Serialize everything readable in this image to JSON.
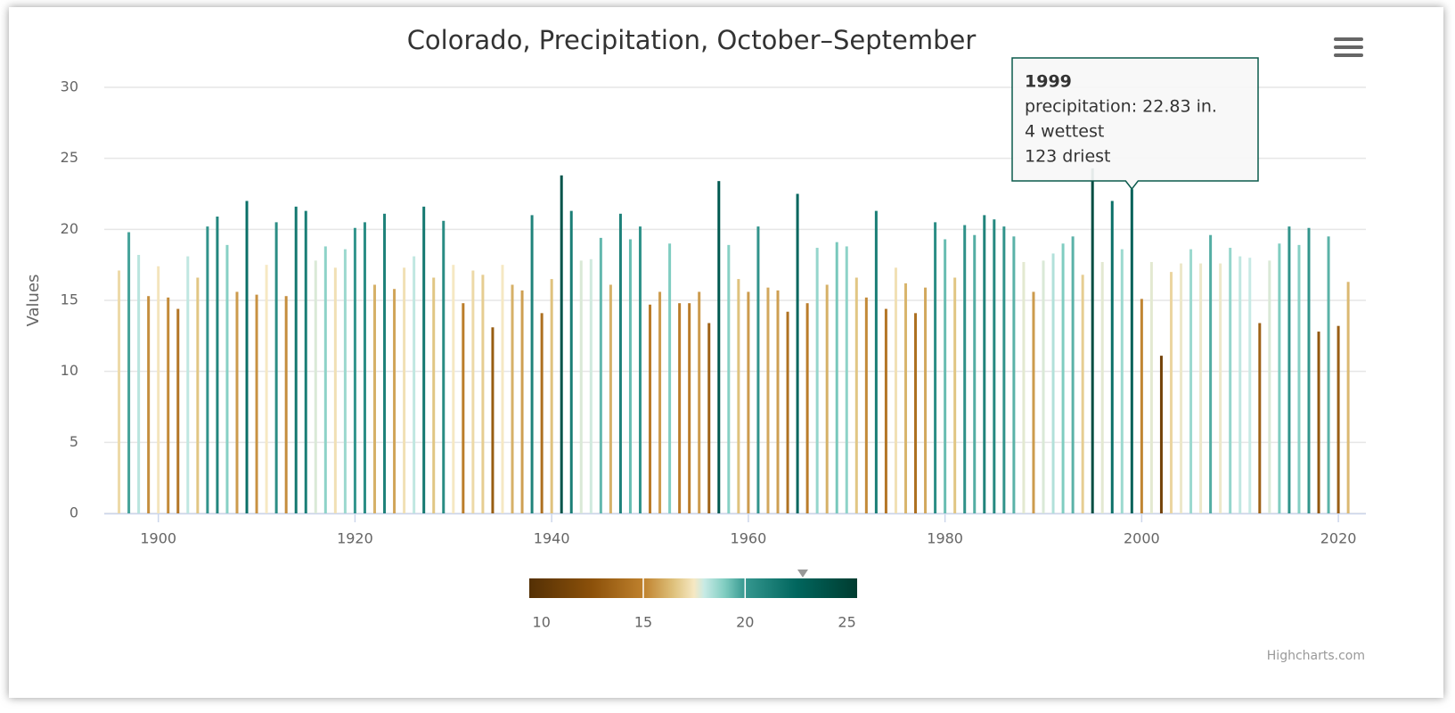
{
  "chart_data": {
    "type": "bar",
    "title": "Colorado, Precipitation, October–September",
    "y_label": "Values",
    "credits": "Highcharts.com",
    "x": [
      1896,
      1897,
      1898,
      1899,
      1900,
      1901,
      1902,
      1903,
      1904,
      1905,
      1906,
      1907,
      1908,
      1909,
      1910,
      1911,
      1912,
      1913,
      1914,
      1915,
      1916,
      1917,
      1918,
      1919,
      1920,
      1921,
      1922,
      1923,
      1924,
      1925,
      1926,
      1927,
      1928,
      1929,
      1930,
      1931,
      1932,
      1933,
      1934,
      1935,
      1936,
      1937,
      1938,
      1939,
      1940,
      1941,
      1942,
      1943,
      1944,
      1945,
      1946,
      1947,
      1948,
      1949,
      1950,
      1951,
      1952,
      1953,
      1954,
      1955,
      1956,
      1957,
      1958,
      1959,
      1960,
      1961,
      1962,
      1963,
      1964,
      1965,
      1966,
      1967,
      1968,
      1969,
      1970,
      1971,
      1972,
      1973,
      1974,
      1975,
      1976,
      1977,
      1978,
      1979,
      1980,
      1981,
      1982,
      1983,
      1984,
      1985,
      1986,
      1987,
      1988,
      1989,
      1990,
      1991,
      1992,
      1993,
      1994,
      1995,
      1996,
      1997,
      1998,
      1999,
      2000,
      2001,
      2002,
      2003,
      2004,
      2005,
      2006,
      2007,
      2008,
      2009,
      2010,
      2011,
      2012,
      2013,
      2014,
      2015,
      2016,
      2017,
      2018,
      2019,
      2020,
      2021
    ],
    "values": [
      17.1,
      19.8,
      18.2,
      15.3,
      17.4,
      15.2,
      14.4,
      18.1,
      16.6,
      20.2,
      20.9,
      18.9,
      15.6,
      22.0,
      15.4,
      17.5,
      20.5,
      15.3,
      21.6,
      21.3,
      17.8,
      18.8,
      17.3,
      18.6,
      20.1,
      20.5,
      16.1,
      21.1,
      15.8,
      17.3,
      18.1,
      21.6,
      16.6,
      20.6,
      17.5,
      14.8,
      17.1,
      16.8,
      13.1,
      17.5,
      16.1,
      15.7,
      21.0,
      14.1,
      16.5,
      23.8,
      21.3,
      17.8,
      17.9,
      19.4,
      16.1,
      21.1,
      19.3,
      20.2,
      14.7,
      15.6,
      19.0,
      14.8,
      14.8,
      15.6,
      13.4,
      23.4,
      18.9,
      16.5,
      15.6,
      20.2,
      15.9,
      15.7,
      14.2,
      22.5,
      14.8,
      18.7,
      16.1,
      19.1,
      18.8,
      16.6,
      15.2,
      21.3,
      14.4,
      17.3,
      16.2,
      14.1,
      15.9,
      20.5,
      19.3,
      16.6,
      20.3,
      19.6,
      21.0,
      20.7,
      20.2,
      19.5,
      17.7,
      15.6,
      17.8,
      18.3,
      19.0,
      19.5,
      16.8,
      24.3,
      17.7,
      22.0,
      18.6,
      22.83,
      15.1,
      17.7,
      11.1,
      17.0,
      17.6,
      18.6,
      17.6,
      19.6,
      17.6,
      18.7,
      18.1,
      18.0,
      13.4,
      17.8,
      19.0,
      20.2,
      18.9,
      20.1,
      12.8,
      19.5,
      13.2,
      16.3
    ],
    "xlim": [
      1894.5,
      2022.8
    ],
    "xticks": [
      1900,
      1920,
      1940,
      1960,
      1980,
      2000,
      2020
    ],
    "ylim": [
      0,
      30
    ],
    "yticks": [
      0,
      5,
      10,
      15,
      20,
      25,
      30
    ],
    "grid": true,
    "color_axis": {
      "lim": [
        9.4,
        25.5
      ],
      "ticks": [
        10,
        15,
        20,
        25
      ],
      "stops": [
        {
          "value": 9.4,
          "color": "#543005"
        },
        {
          "value": 12.5,
          "color": "#8c510a"
        },
        {
          "value": 15,
          "color": "#bf812d"
        },
        {
          "value": 16.5,
          "color": "#dfc27d"
        },
        {
          "value": 17.5,
          "color": "#f6e8c3"
        },
        {
          "value": 18,
          "color": "#c7eae5"
        },
        {
          "value": 19,
          "color": "#80cdc1"
        },
        {
          "value": 20,
          "color": "#35978f"
        },
        {
          "value": 22.5,
          "color": "#01665e"
        },
        {
          "value": 25.5,
          "color": "#003c30"
        }
      ]
    },
    "tooltip": {
      "index": 103,
      "lines": [
        "1999",
        "precipitation: 22.83 in.",
        "4 wettest",
        "123 driest"
      ]
    }
  }
}
